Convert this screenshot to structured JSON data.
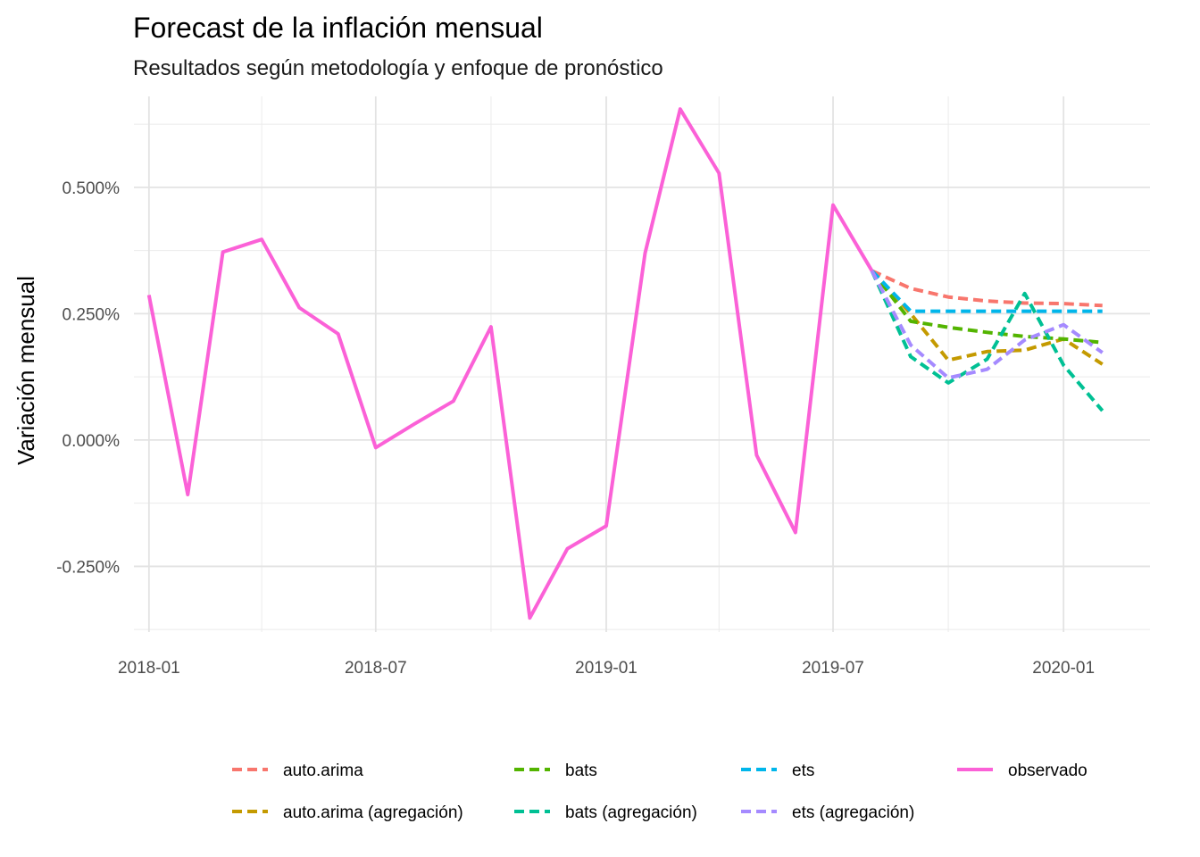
{
  "chart_data": {
    "type": "line",
    "title": "Forecast de la inflación mensual",
    "subtitle": "Resultados según metodología y enfoque de pronóstico",
    "xlabel": "",
    "ylabel": "Variación mensual",
    "ylim": [
      -0.38,
      0.68
    ],
    "y_ticks": [
      {
        "value": -0.25,
        "label": "-0.250%"
      },
      {
        "value": 0,
        "label": "0.000%"
      },
      {
        "value": 0.25,
        "label": "0.250%"
      },
      {
        "value": 0.5,
        "label": "0.500%"
      }
    ],
    "xlim": [
      "2017-12-20",
      "2020-03-10"
    ],
    "x_ticks": [
      {
        "value": "2018-01-01",
        "label": "2018-01"
      },
      {
        "value": "2018-07-01",
        "label": "2018-07"
      },
      {
        "value": "2019-01-01",
        "label": "2019-01"
      },
      {
        "value": "2019-07-01",
        "label": "2019-07"
      },
      {
        "value": "2020-01-01",
        "label": "2020-01"
      }
    ],
    "x_minor": [
      "2018-04-01",
      "2018-10-01",
      "2019-04-01",
      "2019-10-01"
    ],
    "grid": true,
    "legend_position": "bottom",
    "series": [
      {
        "name": "auto.arima",
        "color": "#F8766D",
        "dashed": true,
        "x": [
          "2019-08-01",
          "2019-09-01",
          "2019-10-01",
          "2019-11-01",
          "2019-12-01",
          "2020-01-01",
          "2020-02-01"
        ],
        "y": [
          0.335,
          0.3,
          0.283,
          0.275,
          0.271,
          0.27,
          0.266
        ]
      },
      {
        "name": "auto.arima (agregación)",
        "color": "#C49A00",
        "dashed": true,
        "x": [
          "2019-08-01",
          "2019-09-01",
          "2019-10-01",
          "2019-11-01",
          "2019-12-01",
          "2020-01-01",
          "2020-02-01"
        ],
        "y": [
          0.335,
          0.25,
          0.158,
          0.175,
          0.178,
          0.2,
          0.15
        ]
      },
      {
        "name": "bats",
        "color": "#53B400",
        "dashed": true,
        "x": [
          "2019-08-01",
          "2019-09-01",
          "2019-10-01",
          "2019-11-01",
          "2019-12-01",
          "2020-01-01",
          "2020-02-01"
        ],
        "y": [
          0.335,
          0.235,
          0.223,
          0.213,
          0.205,
          0.2,
          0.193
        ]
      },
      {
        "name": "bats (agregación)",
        "color": "#00C094",
        "dashed": true,
        "x": [
          "2019-08-01",
          "2019-09-01",
          "2019-10-01",
          "2019-11-01",
          "2019-12-01",
          "2020-01-01",
          "2020-02-01"
        ],
        "y": [
          0.335,
          0.165,
          0.113,
          0.16,
          0.29,
          0.148,
          0.058
        ]
      },
      {
        "name": "ets",
        "color": "#00B6EB",
        "dashed": true,
        "x": [
          "2019-08-01",
          "2019-09-01",
          "2019-10-01",
          "2019-11-01",
          "2019-12-01",
          "2020-01-01",
          "2020-02-01"
        ],
        "y": [
          0.335,
          0.255,
          0.255,
          0.255,
          0.255,
          0.255,
          0.255
        ]
      },
      {
        "name": "ets (agregación)",
        "color": "#A58AFF",
        "dashed": true,
        "x": [
          "2019-08-01",
          "2019-09-01",
          "2019-10-01",
          "2019-11-01",
          "2019-12-01",
          "2020-01-01",
          "2020-02-01"
        ],
        "y": [
          0.335,
          0.188,
          0.123,
          0.14,
          0.198,
          0.228,
          0.173
        ]
      },
      {
        "name": "observado",
        "color": "#FB61D7",
        "dashed": false,
        "x": [
          "2018-01-01",
          "2018-02-01",
          "2018-03-01",
          "2018-04-01",
          "2018-05-01",
          "2018-06-01",
          "2018-07-01",
          "2018-08-01",
          "2018-09-01",
          "2018-10-01",
          "2018-11-01",
          "2018-12-01",
          "2019-01-01",
          "2019-02-01",
          "2019-03-01",
          "2019-04-01",
          "2019-05-01",
          "2019-06-01",
          "2019-07-01",
          "2019-08-01"
        ],
        "y": [
          0.287,
          -0.108,
          0.372,
          0.397,
          0.262,
          0.21,
          -0.015,
          0.032,
          0.077,
          0.224,
          -0.352,
          -0.215,
          -0.17,
          0.37,
          0.655,
          0.528,
          -0.03,
          -0.183,
          0.465,
          0.335
        ]
      }
    ],
    "legend": [
      [
        "auto.arima",
        "bats",
        "ets",
        "observado"
      ],
      [
        "auto.arima (agregación)",
        "bats (agregación)",
        "ets (agregación)"
      ]
    ]
  }
}
